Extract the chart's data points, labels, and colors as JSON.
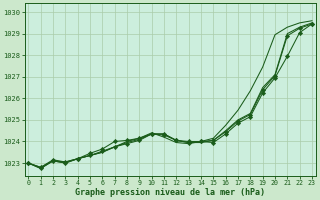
{
  "xlabel": "Graphe pression niveau de la mer (hPa)",
  "bg_color": "#cce8cc",
  "plot_bg_color": "#cceedd",
  "grid_color": "#aaccaa",
  "line_color": "#1a5c1a",
  "x_values": [
    0,
    1,
    2,
    3,
    4,
    5,
    6,
    7,
    8,
    9,
    10,
    11,
    12,
    13,
    14,
    15,
    16,
    17,
    18,
    19,
    20,
    21,
    22,
    23
  ],
  "ylim": [
    1022.4,
    1030.4
  ],
  "yticks": [
    1023,
    1024,
    1025,
    1026,
    1027,
    1028,
    1029,
    1030
  ],
  "line1": [
    1023.0,
    1022.8,
    1023.15,
    1023.05,
    1023.2,
    1023.35,
    1023.55,
    1023.75,
    1023.9,
    1024.05,
    1024.35,
    1024.35,
    1024.05,
    1023.95,
    1024.0,
    1024.05,
    1024.45,
    1024.95,
    1025.25,
    1026.4,
    1027.05,
    1028.9,
    1029.25,
    1029.45
  ],
  "line2": [
    1023.0,
    1022.8,
    1023.1,
    1023.05,
    1023.2,
    1023.35,
    1023.5,
    1023.75,
    1024.0,
    1024.15,
    1024.4,
    1024.2,
    1023.95,
    1023.9,
    1024.0,
    1024.15,
    1024.75,
    1025.45,
    1026.35,
    1027.45,
    1028.95,
    1029.3,
    1029.5,
    1029.6
  ],
  "line3": [
    1023.0,
    1022.75,
    1023.1,
    1023.0,
    1023.2,
    1023.45,
    1023.65,
    1024.0,
    1024.05,
    1024.15,
    1024.35,
    1024.3,
    1024.05,
    1024.0,
    1024.0,
    1023.95,
    1024.35,
    1024.85,
    1025.15,
    1026.25,
    1026.95,
    1027.95,
    1029.05,
    1029.45
  ],
  "line4": [
    1023.0,
    1022.75,
    1023.1,
    1023.0,
    1023.2,
    1023.35,
    1023.5,
    1023.75,
    1023.95,
    1024.1,
    1024.35,
    1024.35,
    1024.05,
    1023.95,
    1023.95,
    1024.05,
    1024.5,
    1025.0,
    1025.3,
    1026.5,
    1027.1,
    1029.0,
    1029.3,
    1029.5
  ],
  "marker": "D",
  "marker_size": 2.2,
  "linewidth": 0.75
}
